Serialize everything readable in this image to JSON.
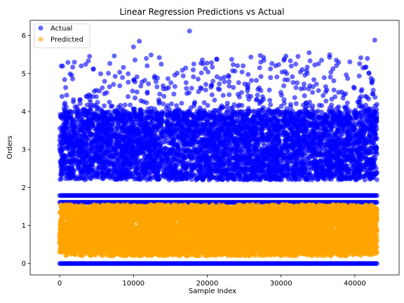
{
  "chart_data": {
    "type": "scatter",
    "title": "Linear Regression Predictions vs Actual",
    "xlabel": "Sample Index",
    "ylabel": "Orders",
    "xlim": [
      -4000,
      46000
    ],
    "ylim": [
      -0.3,
      6.4
    ],
    "x_ticks": [
      0,
      10000,
      20000,
      30000,
      40000
    ],
    "x_tick_labels": [
      "0",
      "10000",
      "20000",
      "30000",
      "40000"
    ],
    "y_ticks": [
      0,
      1,
      2,
      3,
      4,
      5,
      6
    ],
    "y_tick_labels": [
      "0",
      "1",
      "2",
      "3",
      "4",
      "5",
      "6"
    ],
    "grid": false,
    "legend_position": "top-left",
    "n_samples": 43000,
    "series": [
      {
        "name": "Actual",
        "color": "#0000ff",
        "alpha": 0.6,
        "constant_levels": [
          0,
          1.79,
          1.61
        ],
        "main_band": [
          2.2,
          4.0
        ],
        "sparse_band": [
          4.0,
          5.5
        ],
        "outliers": [
          {
            "x": 2000,
            "y": 5.3
          },
          {
            "x": 10000,
            "y": 5.7
          },
          {
            "x": 10800,
            "y": 5.85
          },
          {
            "x": 13500,
            "y": 5.42
          },
          {
            "x": 17600,
            "y": 6.12
          },
          {
            "x": 21300,
            "y": 5.37
          },
          {
            "x": 27100,
            "y": 5.15
          },
          {
            "x": 33800,
            "y": 5.55
          },
          {
            "x": 32300,
            "y": 5.45
          },
          {
            "x": 37500,
            "y": 5.35
          },
          {
            "x": 42700,
            "y": 5.88
          }
        ]
      },
      {
        "name": "Predicted",
        "color": "#ffa500",
        "alpha": 0.6,
        "band": [
          0.2,
          1.55
        ],
        "dense_core": [
          0.3,
          1.5
        ]
      }
    ]
  }
}
